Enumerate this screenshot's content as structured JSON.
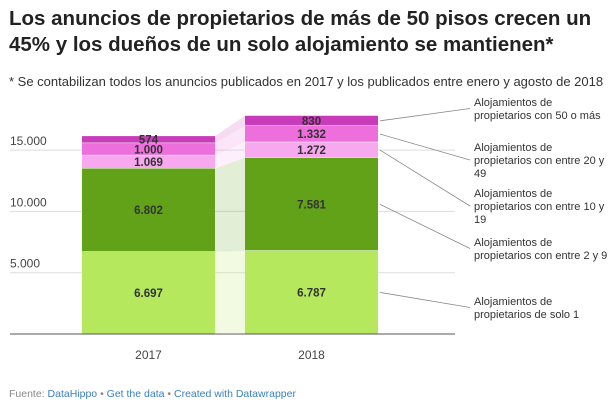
{
  "title": "Los anuncios de propietarios de más de 50 pisos crecen un 45% y los dueños de un solo alojamiento se mantienen*",
  "subtitle": "* Se contabilizan todos los anuncios publicados en 2017 y los publicados entre enero y agosto de 2018",
  "footer": {
    "source_prefix": "Fuente: ",
    "source": "DataHippo",
    "sep1": " • ",
    "get_data": "Get the data",
    "sep2": " • ",
    "created_with": "Created with Datawrapper"
  },
  "colors": {
    "Alojamientos de propietarios de solo 1": "#b5e85c",
    "Alojamientos de propietarios con entre 2 y 9": "#62a219",
    "Alojamientos de propietarios con entre 10 y 19": "#f7a8ee",
    "Alojamientos de propietarios con entre 20 y 49": "#ec6fdc",
    "Alojamientos de propietarios con 50 o más": "#c83cb9"
  },
  "chart_data": {
    "type": "bar",
    "stacked": true,
    "categories": [
      "2017",
      "2018"
    ],
    "series": [
      {
        "name": "Alojamientos de propietarios de solo 1",
        "values": [
          6697,
          6787
        ],
        "labels": [
          "6.697",
          "6.787"
        ]
      },
      {
        "name": "Alojamientos de propietarios con entre 2 y 9",
        "values": [
          6802,
          7581
        ],
        "labels": [
          "6.802",
          "7.581"
        ]
      },
      {
        "name": "Alojamientos de propietarios con entre 10 y 19",
        "values": [
          1069,
          1272
        ],
        "labels": [
          "1.069",
          "1.272"
        ]
      },
      {
        "name": "Alojamientos de propietarios con entre 20 y 49",
        "values": [
          1000,
          1332
        ],
        "labels": [
          "1.000",
          "1.332"
        ]
      },
      {
        "name": "Alojamientos de propietarios con 50 o más",
        "values": [
          574,
          830
        ],
        "labels": [
          "574",
          "830"
        ]
      }
    ],
    "y_ticks": [
      5000,
      10000,
      15000
    ],
    "y_tick_labels": [
      "5.000",
      "10.000",
      "15.000"
    ],
    "ylim": [
      0,
      17700
    ],
    "grid": true,
    "legend": "right"
  }
}
